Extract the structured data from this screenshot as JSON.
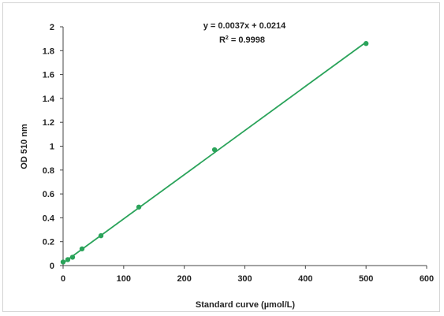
{
  "chart_data": {
    "type": "scatter",
    "title": "",
    "xlabel": "Standard curve (µmol/L)",
    "ylabel": "OD 510 nm",
    "xlim": [
      0,
      600
    ],
    "ylim": [
      0,
      2
    ],
    "xticks": [
      0,
      100,
      200,
      300,
      400,
      500,
      600
    ],
    "yticks": [
      0,
      0.2,
      0.4,
      0.6,
      0.8,
      1,
      1.2,
      1.4,
      1.6,
      1.8,
      2
    ],
    "xtick_labels": [
      "0",
      "100",
      "200",
      "300",
      "400",
      "500",
      "600"
    ],
    "ytick_labels": [
      "0",
      "0.2",
      "0.4",
      "0.6",
      "0.8",
      "1",
      "1.2",
      "1.4",
      "1.6",
      "1.8",
      "2"
    ],
    "grid": false,
    "series": [
      {
        "x": [
          0,
          7.8,
          15.6,
          31.25,
          62.5,
          125,
          250,
          500
        ],
        "y": [
          0.03,
          0.05,
          0.07,
          0.14,
          0.25,
          0.49,
          0.97,
          1.86
        ],
        "color": "#2aa35a"
      }
    ],
    "trendline": {
      "slope": 0.0037,
      "intercept": 0.0214,
      "x_range": [
        0,
        500
      ],
      "equation": "y = 0.0037x + 0.0214",
      "r2_label": "R",
      "r2_sup": "2",
      "r2_value": " = 0.9998",
      "color": "#2aa35a"
    }
  }
}
